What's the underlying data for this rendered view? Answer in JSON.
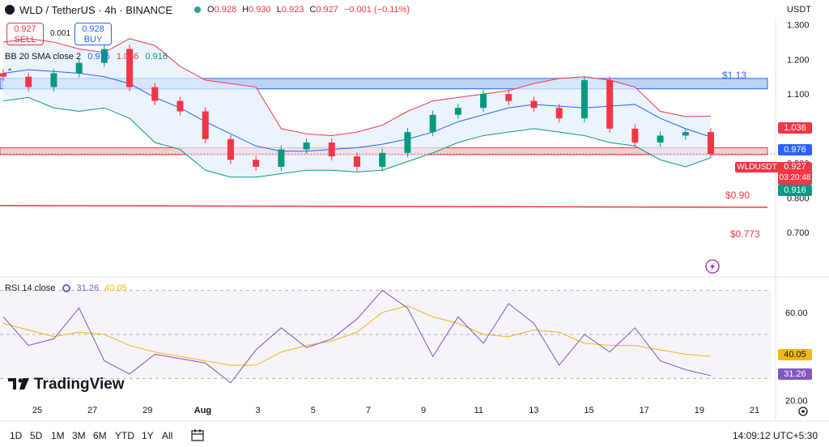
{
  "header": {
    "symbol": "WLD / TetherUS · 4h · BINANCE",
    "o_label": "O",
    "o_value": "0.928",
    "h_label": "H",
    "h_value": "0.930",
    "l_label": "L",
    "l_value": "0.923",
    "c_label": "C",
    "c_value": "0.927",
    "change": "−0.001 (−0.11%)",
    "currency": "USDT"
  },
  "trade": {
    "sell_price": "0.927",
    "sell_label": "SELL",
    "spread": "0.001",
    "buy_price": "0.928",
    "buy_label": "BUY"
  },
  "bb_legend": {
    "label": "BB 20 SMA close 2",
    "basis": "0.976",
    "upper": "1.036",
    "lower": "0.916"
  },
  "rsi_legend": {
    "label": "RSI 14 close",
    "rsi": "31.26",
    "sma": "40.05"
  },
  "price_tags": {
    "upper": "1.036",
    "basis": "0.976",
    "last": "0.927",
    "countdown": "03:20:48",
    "lower": "0.916",
    "symbol": "WLDUSDT",
    "rsi": "31.26",
    "rsi_sma": "40.05"
  },
  "logo_text": "TradingView",
  "toolbar": {
    "ranges": [
      "1D",
      "5D",
      "1M",
      "3M",
      "6M",
      "YTD",
      "1Y",
      "All"
    ],
    "clock": "14:09:12 UTC+5:30"
  },
  "colors": {
    "up": "#089981",
    "down": "#f23645",
    "basis": "#2962ff",
    "upper": "#f23645",
    "lower": "#089981",
    "band_fill": "#e3eefb",
    "rsi": "#7e57c2",
    "rsi_sma": "#f0b90b",
    "zone_blue": "#bbd3f7",
    "zone_red": "#f8cdd0"
  },
  "chart_data": [
    {
      "type": "line",
      "title": "WLD / TetherUS · 4h · BINANCE",
      "y_axis": {
        "ticks": [
          "1.300",
          "1.200",
          "1.100",
          "1.000",
          "0.900",
          "0.800",
          "0.700"
        ],
        "ylim": [
          0.6,
          1.32
        ]
      },
      "x_axis": {
        "ticks": [
          "25",
          "27",
          "29",
          "Aug",
          "3",
          "5",
          "7",
          "9",
          "11",
          "13",
          "15",
          "17",
          "19",
          "21"
        ]
      },
      "annotations": [
        {
          "label": "$1.13",
          "value": 1.13,
          "kind": "resistance zone"
        },
        {
          "label": "$0.90",
          "value": 0.9,
          "kind": "support zone"
        },
        {
          "label": "$0.773",
          "value": 0.773,
          "kind": "support line"
        }
      ],
      "series": [
        {
          "name": "Basis",
          "x": [
            0,
            1,
            2,
            3,
            4,
            5,
            6,
            7,
            8,
            9,
            10,
            11,
            12,
            13,
            14,
            15,
            16,
            17,
            18,
            19,
            20,
            21,
            22,
            23,
            24,
            25,
            26,
            27,
            28
          ],
          "y": [
            1.16,
            1.17,
            1.165,
            1.16,
            1.15,
            1.13,
            1.09,
            1.06,
            1.02,
            0.985,
            0.95,
            0.935,
            0.935,
            0.94,
            0.945,
            0.955,
            0.97,
            0.99,
            1.02,
            1.04,
            1.06,
            1.07,
            1.065,
            1.06,
            1.065,
            1.07,
            1.03,
            1.0,
            0.976
          ]
        },
        {
          "name": "Upper",
          "x": [
            0,
            1,
            2,
            3,
            4,
            5,
            6,
            7,
            8,
            9,
            10,
            11,
            12,
            13,
            14,
            15,
            16,
            17,
            18,
            19,
            20,
            21,
            22,
            23,
            24,
            25,
            26,
            27,
            28
          ],
          "y": [
            1.25,
            1.26,
            1.25,
            1.23,
            1.22,
            1.26,
            1.24,
            1.18,
            1.14,
            1.13,
            1.12,
            1.0,
            0.985,
            0.98,
            0.99,
            1.01,
            1.05,
            1.08,
            1.09,
            1.1,
            1.11,
            1.13,
            1.145,
            1.15,
            1.14,
            1.12,
            1.05,
            1.035,
            1.036
          ]
        },
        {
          "name": "Lower",
          "x": [
            0,
            1,
            2,
            3,
            4,
            5,
            6,
            7,
            8,
            9,
            10,
            11,
            12,
            13,
            14,
            15,
            16,
            17,
            18,
            19,
            20,
            21,
            22,
            23,
            24,
            25,
            26,
            27,
            28
          ],
          "y": [
            1.08,
            1.09,
            1.06,
            1.05,
            1.06,
            1.03,
            0.96,
            0.94,
            0.88,
            0.86,
            0.86,
            0.87,
            0.88,
            0.88,
            0.875,
            0.88,
            0.905,
            0.93,
            0.96,
            0.98,
            0.99,
            1.0,
            0.99,
            0.98,
            0.96,
            0.95,
            0.91,
            0.89,
            0.916
          ]
        },
        {
          "name": "Price",
          "x": [
            0,
            1,
            2,
            3,
            4,
            5,
            6,
            7,
            8,
            9,
            10,
            11,
            12,
            13,
            14,
            15,
            16,
            17,
            18,
            19,
            20,
            21,
            22,
            23,
            24,
            25,
            26,
            27,
            28
          ],
          "y": [
            1.15,
            1.12,
            1.16,
            1.19,
            1.23,
            1.12,
            1.08,
            1.05,
            0.97,
            0.91,
            0.89,
            0.94,
            0.96,
            0.92,
            0.89,
            0.93,
            0.99,
            1.04,
            1.06,
            1.1,
            1.08,
            1.06,
            1.03,
            1.14,
            1.0,
            0.96,
            0.98,
            0.99,
            0.927
          ]
        }
      ]
    },
    {
      "type": "line",
      "title": "RSI 14 close",
      "y_axis": {
        "ticks": [
          "60.00",
          "20.00"
        ],
        "ylim": [
          18,
          75
        ]
      },
      "bands": [
        30,
        50,
        70
      ],
      "series": [
        {
          "name": "RSI",
          "x": [
            0,
            1,
            2,
            3,
            4,
            5,
            6,
            7,
            8,
            9,
            10,
            11,
            12,
            13,
            14,
            15,
            16,
            17,
            18,
            19,
            20,
            21,
            22,
            23,
            24,
            25,
            26,
            27,
            28
          ],
          "y": [
            58,
            45,
            48,
            62,
            38,
            32,
            41,
            39,
            37,
            28,
            43,
            53,
            44,
            48,
            57,
            70,
            62,
            40,
            58,
            46,
            64,
            55,
            36,
            50,
            42,
            53,
            38,
            34,
            31.26
          ]
        },
        {
          "name": "RSI-based MA",
          "x": [
            0,
            1,
            2,
            3,
            4,
            5,
            6,
            7,
            8,
            9,
            10,
            11,
            12,
            13,
            14,
            15,
            16,
            17,
            18,
            19,
            20,
            21,
            22,
            23,
            24,
            25,
            26,
            27,
            28
          ],
          "y": [
            55,
            52,
            49,
            51,
            50,
            45,
            42,
            40,
            38,
            36,
            36,
            42,
            45,
            47,
            51,
            60,
            63,
            58,
            55,
            50,
            49,
            52,
            51,
            46,
            45,
            45,
            43,
            41,
            40.05
          ]
        }
      ]
    }
  ]
}
